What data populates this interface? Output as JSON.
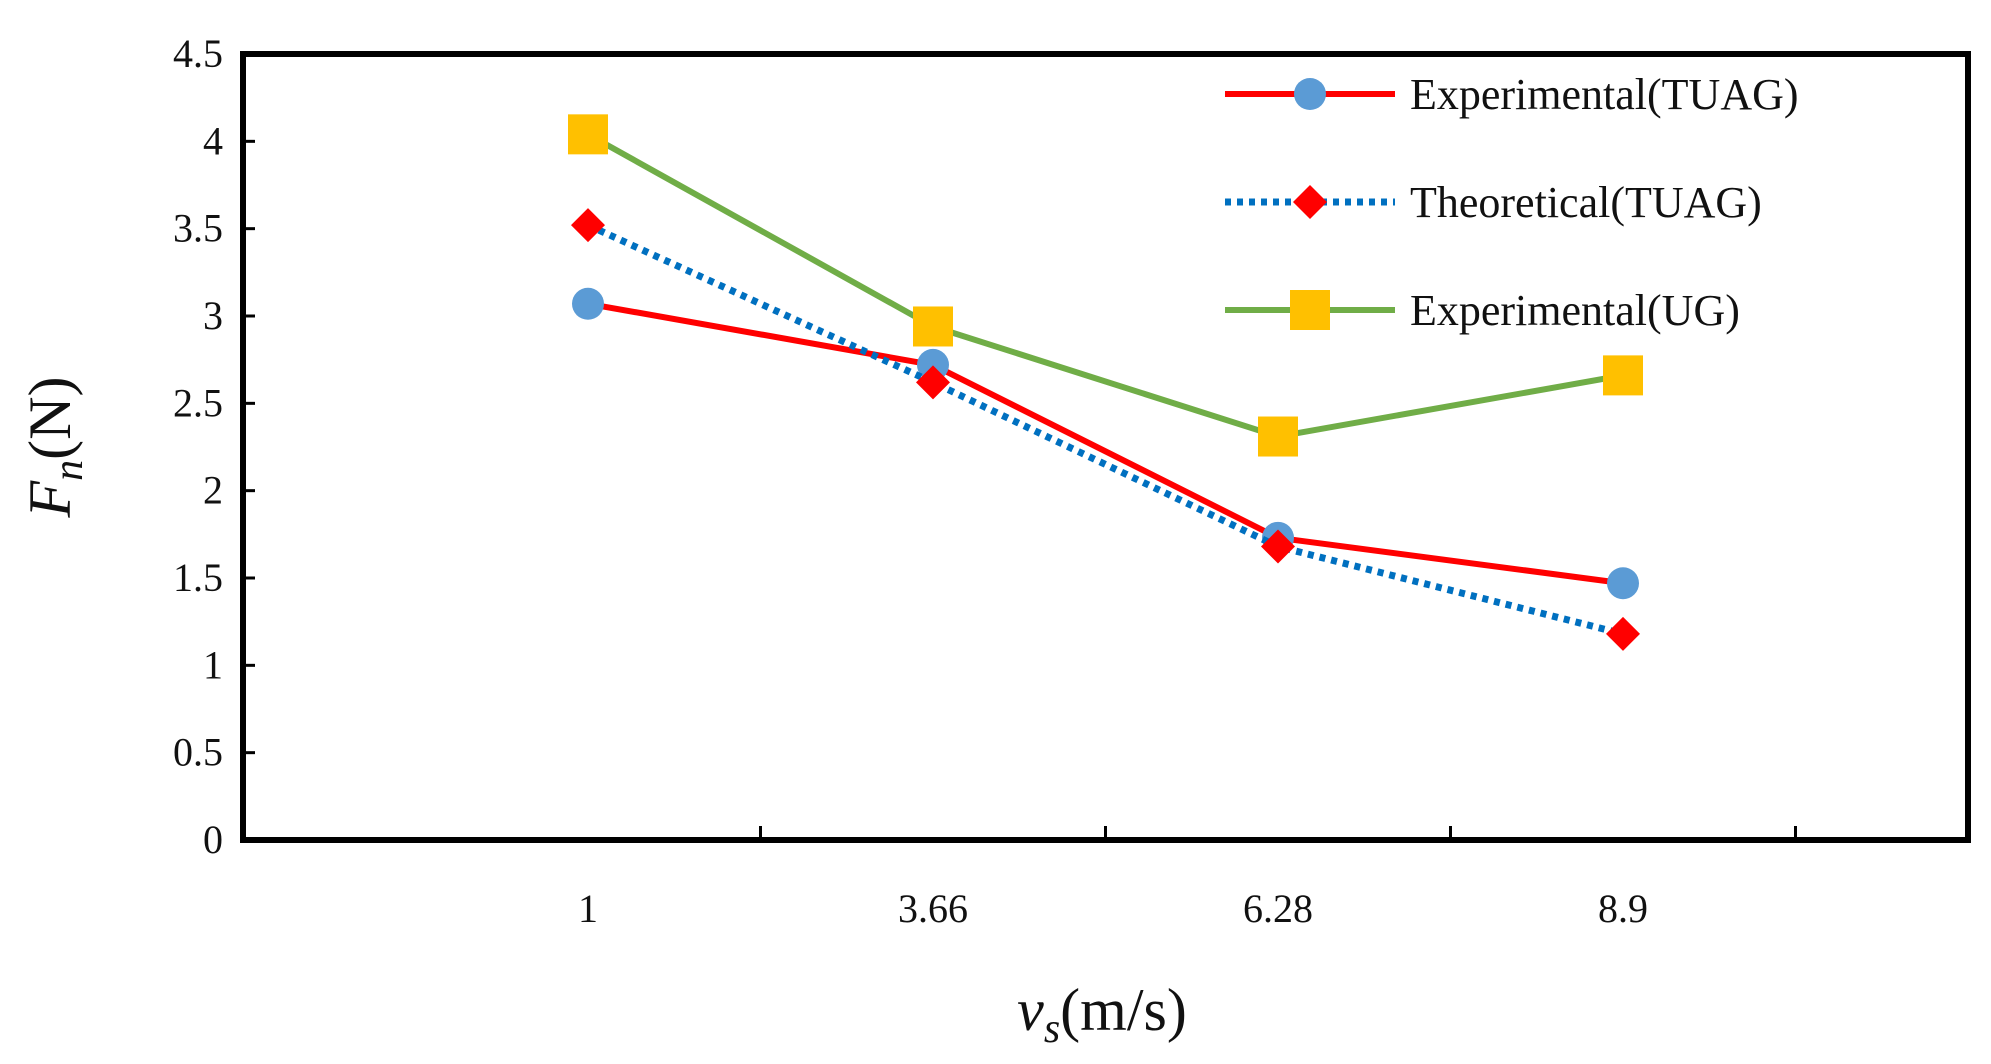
{
  "chart_data": {
    "type": "line",
    "title": "",
    "categories": [
      "1",
      "3.66",
      "6.28",
      "8.9"
    ],
    "xlabel": {
      "base": "v",
      "sub": "s",
      "rest": "(m/s)"
    },
    "ylabel": {
      "base": "F",
      "sub": "n",
      "rest": "(N)"
    },
    "ylim": [
      0,
      4.5
    ],
    "yticks": [
      "0",
      "0.5",
      "1",
      "1.5",
      "2",
      "2.5",
      "3",
      "3.5",
      "4",
      "4.5"
    ],
    "grid": false,
    "legend_position": "top-right",
    "series": [
      {
        "name": "Experimental(TUAG)",
        "values": [
          3.07,
          2.72,
          1.73,
          1.47
        ],
        "line_color": "#ff0000",
        "marker_color": "#5b9bd5",
        "marker": "circle",
        "dash": "solid"
      },
      {
        "name": "Theoretical(TUAG)",
        "values": [
          3.52,
          2.62,
          1.68,
          1.18
        ],
        "line_color": "#0070c0",
        "marker_color": "#ff0000",
        "marker": "diamond",
        "dash": "dotted"
      },
      {
        "name": "Experimental(UG)",
        "values": [
          4.04,
          2.94,
          2.31,
          2.66
        ],
        "line_color": "#70ad47",
        "marker_color": "#ffc000",
        "marker": "square",
        "dash": "solid"
      }
    ]
  }
}
